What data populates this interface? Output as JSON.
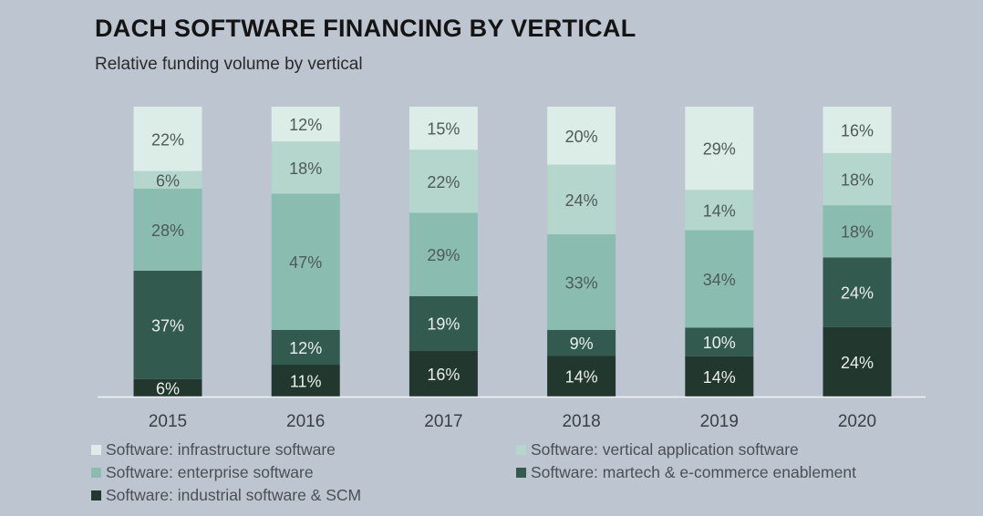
{
  "title": "DACH SOFTWARE FINANCING BY VERTICAL",
  "subtitle": "Relative funding volume by vertical",
  "chart_data": {
    "type": "bar",
    "stacked": true,
    "categories": [
      "2015",
      "2016",
      "2017",
      "2018",
      "2019",
      "2020"
    ],
    "series": [
      {
        "name": "Software: industrial software & SCM",
        "color": "#22382f",
        "values": [
          6,
          11,
          16,
          14,
          14,
          24
        ]
      },
      {
        "name": "Software: martech & e-commerce enablement",
        "color": "#335a4e",
        "values": [
          37,
          12,
          19,
          9,
          10,
          24
        ]
      },
      {
        "name": "Software: enterprise software",
        "color": "#8abcaf",
        "values": [
          28,
          47,
          29,
          33,
          34,
          18
        ]
      },
      {
        "name": "Software: vertical application software",
        "color": "#b4d6cc",
        "values": [
          6,
          18,
          22,
          24,
          14,
          18
        ]
      },
      {
        "name": "Software: infrastructure software",
        "color": "#dcece7",
        "values": [
          22,
          12,
          15,
          20,
          29,
          16
        ]
      }
    ],
    "unit": "%",
    "ylim": [
      0,
      100
    ],
    "legend_position": "bottom",
    "grid": false
  },
  "legend": {
    "items": [
      {
        "label": "Software: infrastructure software",
        "color": "#dcece7"
      },
      {
        "label": "Software: vertical application software",
        "color": "#b4d6cc"
      },
      {
        "label": "Software: enterprise software",
        "color": "#8abcaf"
      },
      {
        "label": "Software: martech & e-commerce enablement",
        "color": "#335a4e"
      },
      {
        "label": "Software: industrial software & SCM",
        "color": "#22382f"
      }
    ]
  }
}
